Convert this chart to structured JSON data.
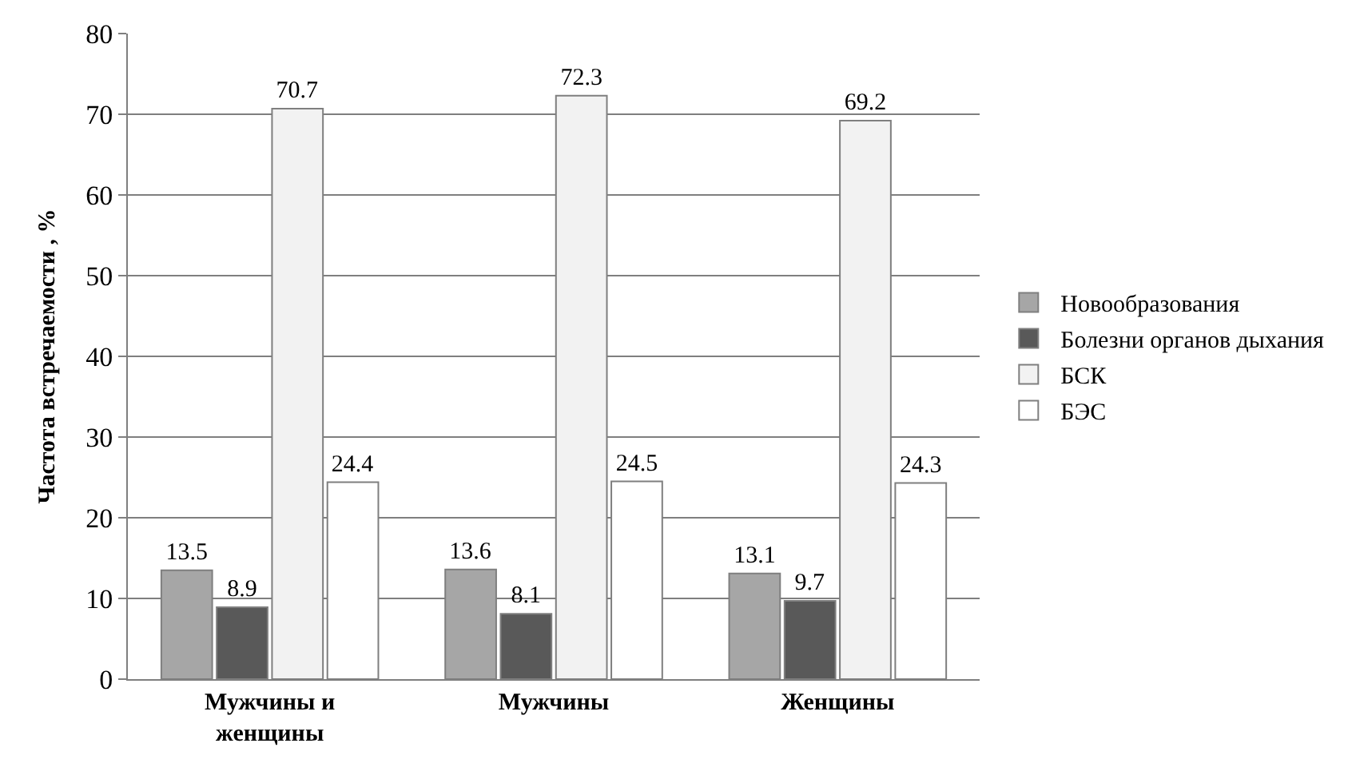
{
  "chart_data": {
    "type": "bar",
    "ylabel": "Частота встречаемости , %",
    "categories": [
      "Мужчины и женщины",
      "Мужчины",
      "Женщины"
    ],
    "series": [
      {
        "name": "Новообразования",
        "color": "#a6a6a6",
        "values": [
          13.5,
          13.6,
          13.1
        ]
      },
      {
        "name": "Болезни органов дыхания",
        "color": "#595959",
        "values": [
          8.9,
          8.1,
          9.7
        ]
      },
      {
        "name": "БСК",
        "color": "#f2f2f2",
        "values": [
          70.7,
          72.3,
          69.2
        ]
      },
      {
        "name": "БЭС",
        "color": "#ffffff",
        "values": [
          24.4,
          24.5,
          24.3
        ]
      }
    ],
    "ylim": [
      0,
      80
    ],
    "yticks": [
      0,
      10,
      20,
      30,
      40,
      50,
      60,
      70,
      80
    ],
    "grid": "y",
    "legend": "right",
    "data_labels": true
  }
}
